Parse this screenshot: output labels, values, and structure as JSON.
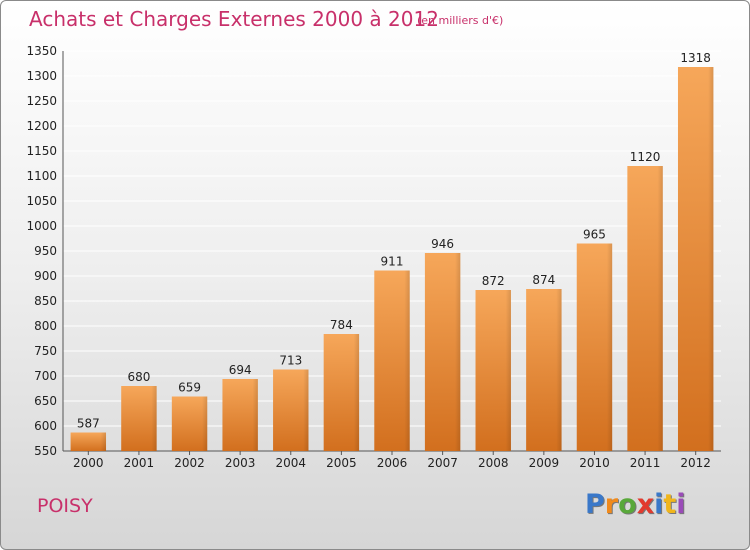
{
  "header": {
    "title": "Achats et Charges Externes 2000 à 2012",
    "subtitle": "(en milliers d'€)"
  },
  "footer": {
    "location": "POISY",
    "logo": {
      "letters": [
        "P",
        "r",
        "o",
        "x",
        "i",
        "t",
        "i"
      ],
      "colors": [
        "#3a78c9",
        "#f08a1c",
        "#59a83a",
        "#e23a2e",
        "#3a78c9",
        "#f0b51c",
        "#9a4bb8"
      ]
    }
  },
  "colors": {
    "bar_top": "#f6a75a",
    "bar_bottom": "#d26f1e",
    "grid": "#ffffff",
    "text_accent": "#c8306a"
  },
  "chart_data": {
    "type": "bar",
    "categories": [
      "2000",
      "2001",
      "2002",
      "2003",
      "2004",
      "2005",
      "2006",
      "2007",
      "2008",
      "2009",
      "2010",
      "2011",
      "2012"
    ],
    "values": [
      587,
      680,
      659,
      694,
      713,
      784,
      911,
      946,
      872,
      874,
      965,
      1120,
      1318
    ],
    "data_labels": [
      "587",
      "680",
      "659",
      "694",
      "713",
      "784",
      "911",
      "946",
      "872",
      "874",
      "965",
      "1120",
      "1318"
    ],
    "yticks": [
      "550",
      "600",
      "650",
      "700",
      "750",
      "800",
      "850",
      "900",
      "950",
      "1000",
      "1050",
      "1100",
      "1150",
      "1200",
      "1250",
      "1300",
      "1350"
    ],
    "ylim": [
      550,
      1350
    ],
    "grid": true
  }
}
